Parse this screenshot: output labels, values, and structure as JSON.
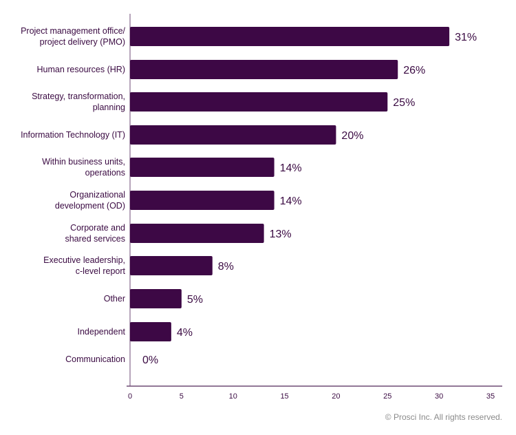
{
  "chart_data": {
    "type": "bar",
    "orientation": "horizontal",
    "categories": [
      [
        "Project management office/",
        "project delivery (PMO)"
      ],
      [
        "Human resources (HR)"
      ],
      [
        "Strategy, transformation,",
        "planning"
      ],
      [
        "Information Technology (IT)"
      ],
      [
        "Within business units,",
        "operations"
      ],
      [
        "Organizational",
        "development (OD)"
      ],
      [
        "Corporate and",
        "shared services"
      ],
      [
        "Executive leadership,",
        "c-level report"
      ],
      [
        "Other"
      ],
      [
        "Independent"
      ],
      [
        "Communication"
      ]
    ],
    "values": [
      31,
      26,
      25,
      20,
      14,
      14,
      13,
      8,
      5,
      4,
      0
    ],
    "data_labels": [
      "31%",
      "26%",
      "25%",
      "20%",
      "14%",
      "14%",
      "13%",
      "8%",
      "5%",
      "4%",
      "0%"
    ],
    "xlim": [
      0,
      35
    ],
    "xticks": [
      "0",
      "5",
      "10",
      "15",
      "20",
      "25",
      "30",
      "35"
    ],
    "grid": false,
    "bar_color": "#3d0845"
  },
  "footer": {
    "copyright": "© Prosci Inc. All rights reserved."
  }
}
